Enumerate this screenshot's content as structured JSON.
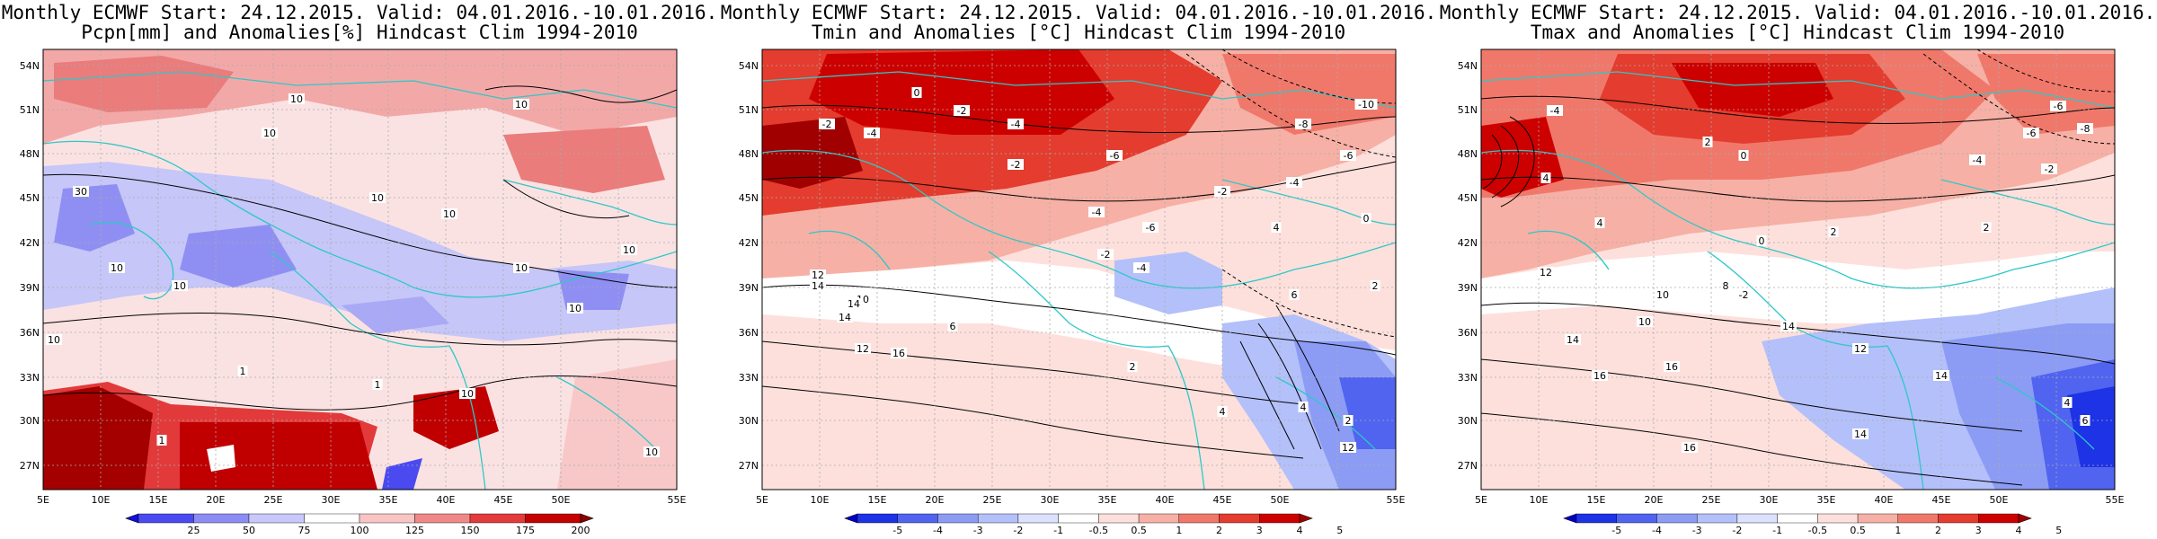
{
  "panels": [
    {
      "title_line1": "Monthly ECMWF Start: 24.12.2015. Valid: 04.01.2016.-10.01.2016.",
      "title_line2": "Pcpn[mm] and Anomalies[%] Hindcast Clim 1994-2010",
      "colorbar_labels": [
        "25",
        "50",
        "75",
        "100",
        "125",
        "150",
        "175",
        "200"
      ],
      "colorbar_colors": [
        "#1010d8",
        "#4a4af0",
        "#8c8cf5",
        "#c8c8fa",
        "#ffffff",
        "#f9c4c4",
        "#f08888",
        "#e33b3b",
        "#c40000",
        "#8b0000"
      ],
      "contour_labels": [
        "10",
        "10",
        "10",
        "10",
        "30",
        "10",
        "10",
        "10",
        "10",
        "10",
        "10",
        "10",
        "1",
        "1",
        "10",
        "1",
        "10"
      ]
    },
    {
      "title_line1": "Monthly ECMWF Start: 24.12.2015. Valid: 04.01.2016.-10.01.2016.",
      "title_line2": "Tmin and Anomalies [°C] Hindcast Clim 1994-2010",
      "colorbar_labels": [
        "-5",
        "-4",
        "-3",
        "-2",
        "-1",
        "-0.5",
        "0.5",
        "1",
        "2",
        "3",
        "4",
        "5"
      ],
      "colorbar_colors": [
        "#0000c8",
        "#1e32e6",
        "#5064f0",
        "#8c9cf5",
        "#b4c0fa",
        "#dce2fd",
        "#ffffff",
        "#fde0dc",
        "#f7b0a5",
        "#f0786a",
        "#e43c2e",
        "#cd0000",
        "#a00000"
      ],
      "contour_labels": [
        "-2",
        "-4",
        "0",
        "-2",
        "-4",
        "-2",
        "-6",
        "-8",
        "-10",
        "-6",
        "-4",
        "-2",
        "-4",
        "-6",
        "12",
        "14",
        "14",
        "16",
        "10",
        "12",
        "6",
        "2",
        "4",
        "4",
        "2",
        "-2",
        "-4",
        "4",
        "6",
        "2",
        "0",
        "14",
        "12"
      ]
    },
    {
      "title_line1": "Monthly ECMWF Start: 24.12.2015. Valid: 04.01.2016.-10.01.2016.",
      "title_line2": "Tmax and Anomalies [°C] Hindcast Clim 1994-2010",
      "colorbar_labels": [
        "-5",
        "-4",
        "-3",
        "-2",
        "-1",
        "-0.5",
        "0.5",
        "1",
        "2",
        "3",
        "4",
        "5"
      ],
      "colorbar_colors": [
        "#0000c8",
        "#1e32e6",
        "#5064f0",
        "#8c9cf5",
        "#b4c0fa",
        "#dce2fd",
        "#ffffff",
        "#fde0dc",
        "#f7b0a5",
        "#f0786a",
        "#e43c2e",
        "#cd0000",
        "#a00000"
      ],
      "contour_labels": [
        "-4",
        "-6",
        "4",
        "2",
        "0",
        "-2",
        "-4",
        "-6",
        "-8",
        "2",
        "0",
        "4",
        "2",
        "12",
        "10",
        "14",
        "16",
        "14",
        "16",
        "12",
        "14",
        "16",
        "14",
        "6",
        "4",
        "10",
        "8",
        "-2"
      ]
    }
  ],
  "lat_labels": [
    "54N",
    "51N",
    "48N",
    "45N",
    "42N",
    "39N",
    "36N",
    "33N",
    "30N",
    "27N"
  ],
  "lon_labels": [
    "5E",
    "10E",
    "15E",
    "20E",
    "25E",
    "30E",
    "35E",
    "40E",
    "45E",
    "50E",
    "55E"
  ]
}
